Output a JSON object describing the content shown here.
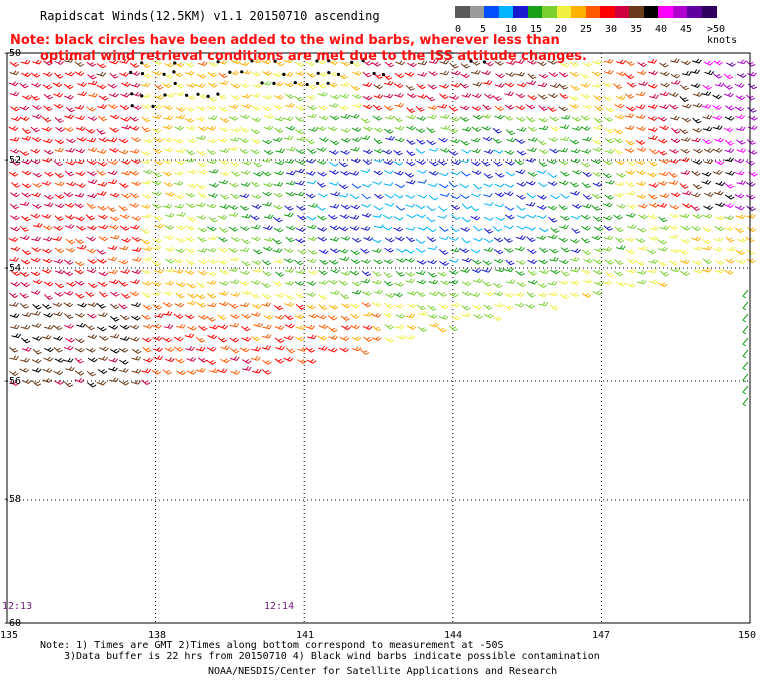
{
  "title": "Rapidscat Winds(12.5KM) v1.1 20150710 ascending",
  "notice": {
    "line1": "Note: black circles have been added to the wind barbs, wherever less than",
    "line2": "optimal wind retrieval conditions are met due to the ISS attitude changes."
  },
  "color_scale": {
    "unit_label": ">50 knots",
    "labels": [
      "0",
      "5",
      "10",
      "15",
      "20",
      "25",
      "30",
      "35",
      "40",
      "45"
    ],
    "colors": [
      "#5a5a5a",
      "#9a9a9a",
      "#0050ff",
      "#00b4ff",
      "#1a1ad0",
      "#18a018",
      "#7ad030",
      "#f0f040",
      "#ffb000",
      "#ff5a00",
      "#ff0000",
      "#d00040",
      "#6a3a1a",
      "#000000",
      "#ff00ff",
      "#b000d0",
      "#6000a0",
      "#300060"
    ]
  },
  "axes": {
    "lat_labels": [
      "-50",
      "-52",
      "-54",
      "-56",
      "-58",
      "-60"
    ],
    "lon_labels": [
      "135",
      "138",
      "141",
      "144",
      "147",
      "150"
    ]
  },
  "time_labels": [
    "12:13",
    "12:14"
  ],
  "footer": {
    "note_line1": "Note: 1) Times are GMT 2)Times along bottom correspond to measurement at -50S",
    "note_line2": "3)Data buffer is 22 hrs from 20150710 4) Black wind barbs indicate possible contamination",
    "credit": "NOAA/NESDIS/Center for Satellite Applications and Research"
  }
}
